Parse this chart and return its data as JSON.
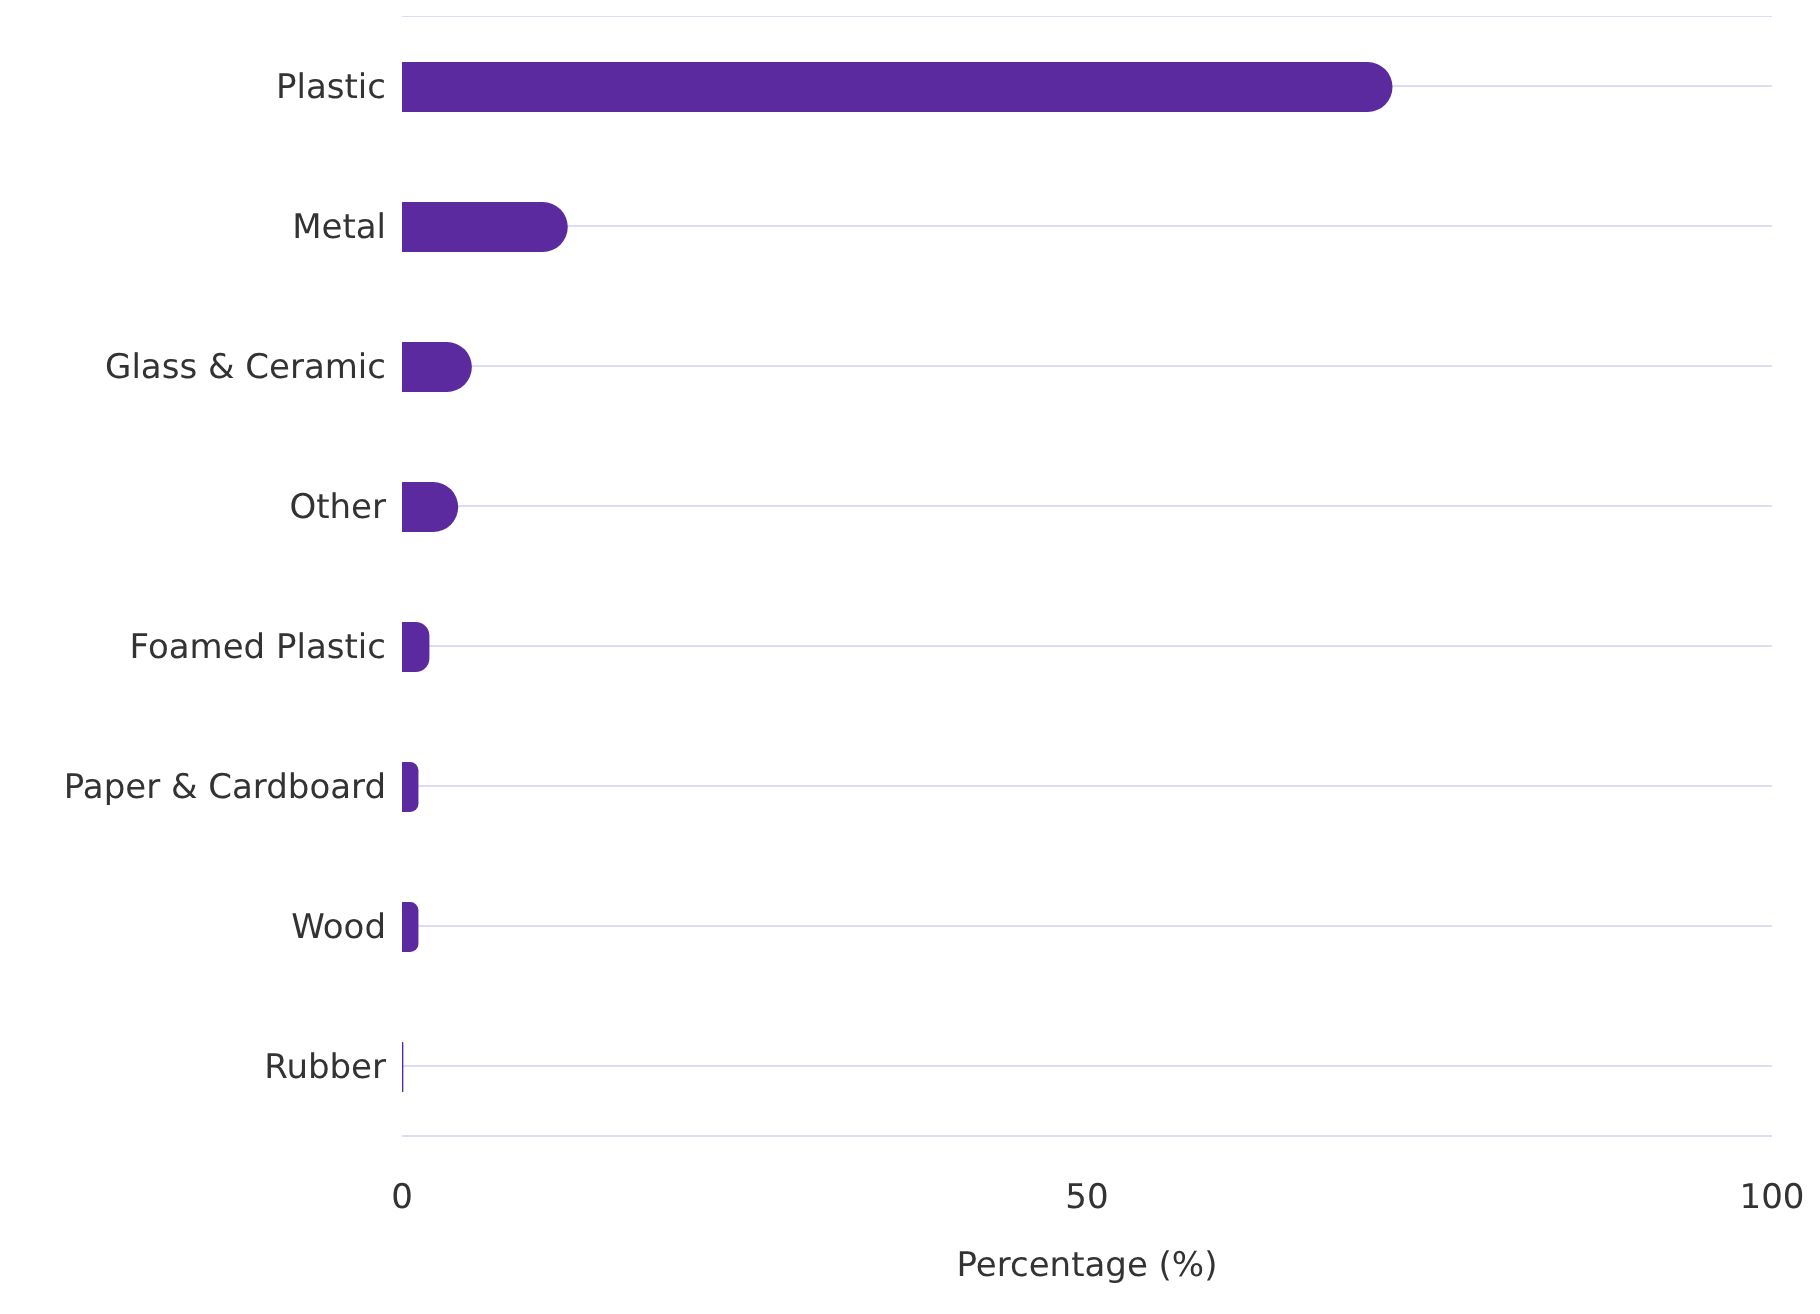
{
  "chart_data": {
    "type": "bar",
    "orientation": "horizontal",
    "categories": [
      "Plastic",
      "Metal",
      "Glass & Ceramic",
      "Other",
      "Foamed Plastic",
      "Paper & Cardboard",
      "Wood",
      "Rubber"
    ],
    "values": [
      72.3,
      12.1,
      5.1,
      4.1,
      2.0,
      1.2,
      1.2,
      0.1
    ],
    "color": "#5b2a9e",
    "xlim": [
      0,
      100
    ],
    "xticks": [
      0,
      50,
      100
    ],
    "xlabel": "Percentage (%)",
    "grid": "y"
  }
}
